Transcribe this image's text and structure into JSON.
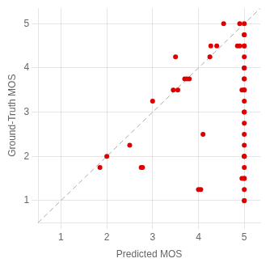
{
  "chart_data": {
    "type": "scatter",
    "xlabel": "Predicted MOS",
    "ylabel": "Ground-Truth MOS",
    "xlim": [
      0.5,
      5.35
    ],
    "ylim": [
      0.5,
      5.35
    ],
    "xticks": [
      1,
      2,
      3,
      4,
      5
    ],
    "yticks": [
      1,
      2,
      3,
      4,
      5
    ],
    "grid": true,
    "series": [
      {
        "type": "line",
        "color": "#aaaaaa",
        "line_style": "dashed",
        "x": [
          0.5,
          5.35
        ],
        "values": [
          0.5,
          5.35
        ]
      },
      {
        "type": "scatter",
        "color": "#dd0000",
        "marker": "circle",
        "x": [
          1.85,
          2.0,
          2.5,
          2.75,
          2.78,
          3.0,
          3.45,
          3.55,
          3.7,
          3.75,
          3.8,
          3.5,
          4.1,
          4.25,
          4.27,
          4.4,
          4.55,
          4.0,
          4.05,
          4.85,
          4.9,
          4.9,
          4.95,
          4.95,
          5.0,
          5.0,
          5.0,
          5.0,
          5.0,
          5.0,
          5.0,
          5.0,
          5.0,
          5.0,
          5.0,
          5.0,
          5.0,
          5.0,
          5.0,
          5.0,
          5.0,
          5.0,
          5.0,
          5.0,
          5.0,
          5.0,
          5.0,
          5.0,
          5.0,
          5.0,
          5.0
        ],
        "values": [
          1.75,
          2.0,
          2.25,
          1.75,
          1.75,
          3.25,
          3.5,
          3.5,
          3.75,
          3.75,
          3.75,
          4.25,
          2.5,
          4.25,
          4.5,
          4.5,
          5.0,
          1.25,
          1.25,
          4.5,
          4.5,
          5.0,
          1.5,
          3.5,
          5.0,
          4.75,
          4.5,
          4.25,
          4.0,
          3.75,
          3.5,
          3.25,
          3.0,
          2.75,
          2.5,
          2.25,
          2.0,
          2.0,
          1.75,
          1.5,
          1.25,
          1.0,
          1.5,
          3.0,
          3.5,
          3.75,
          4.0,
          4.5,
          4.75,
          2.0,
          1.0
        ]
      }
    ]
  }
}
